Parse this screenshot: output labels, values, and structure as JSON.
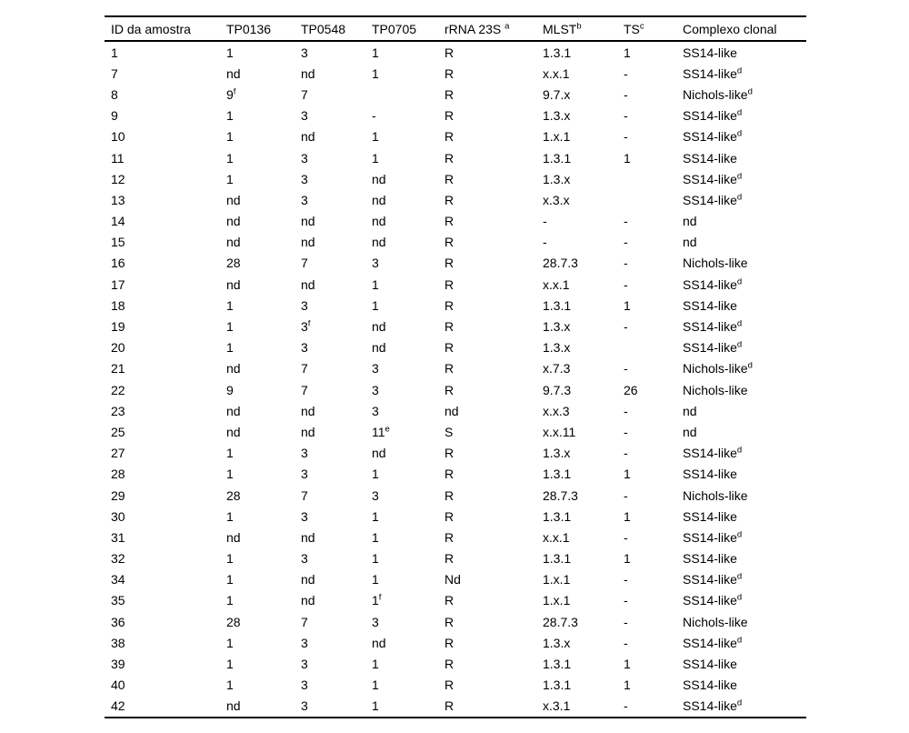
{
  "colors": {
    "background": "#ffffff",
    "text": "#000000",
    "rule": "#000000"
  },
  "table": {
    "superscript_marker": "^",
    "columns": [
      "ID da amostra",
      "TP0136",
      "TP0548",
      "TP0705",
      "rRNA 23S ^a",
      "MLST^b",
      "TS^c",
      "Complexo clonal"
    ],
    "rows": [
      [
        "1",
        "1",
        "3",
        "1",
        "R",
        "1.3.1",
        "1",
        "SS14-like"
      ],
      [
        "7",
        "nd",
        "nd",
        "1",
        "R",
        "x.x.1",
        "-",
        "SS14-like^d"
      ],
      [
        "8",
        "9^f",
        "7",
        "",
        "R",
        "9.7.x",
        "-",
        "Nichols-like^d"
      ],
      [
        "9",
        "1",
        "3",
        "-",
        "R",
        "1.3.x",
        "-",
        "SS14-like^d"
      ],
      [
        "10",
        "1",
        "nd",
        "1",
        "R",
        "1.x.1",
        "-",
        "SS14-like^d"
      ],
      [
        "11",
        "1",
        "3",
        "1",
        "R",
        "1.3.1",
        "1",
        "SS14-like"
      ],
      [
        "12",
        "1",
        "3",
        "nd",
        "R",
        "1.3.x",
        "",
        "SS14-like^d"
      ],
      [
        "13",
        "nd",
        "3",
        "nd",
        "R",
        "x.3.x",
        "",
        "SS14-like^d"
      ],
      [
        "14",
        "nd",
        "nd",
        "nd",
        "R",
        "-",
        "-",
        "nd"
      ],
      [
        "15",
        "nd",
        "nd",
        "nd",
        "R",
        "-",
        "-",
        "nd"
      ],
      [
        "16",
        "28",
        "7",
        "3",
        "R",
        "28.7.3",
        "-",
        "Nichols-like"
      ],
      [
        "17",
        "nd",
        "nd",
        "1",
        "R",
        "x.x.1",
        "-",
        "SS14-like^d"
      ],
      [
        "18",
        "1",
        "3",
        "1",
        "R",
        "1.3.1",
        "1",
        "SS14-like"
      ],
      [
        "19",
        "1",
        "3^f",
        "nd",
        "R",
        "1.3.x",
        "-",
        "SS14-like^d"
      ],
      [
        "20",
        "1",
        "3",
        "nd",
        "R",
        "1.3.x",
        "",
        "SS14-like^d"
      ],
      [
        "21",
        "nd",
        "7",
        "3",
        "R",
        "x.7.3",
        "-",
        "Nichols-like^d"
      ],
      [
        "22",
        "9",
        "7",
        "3",
        "R",
        "9.7.3",
        "26",
        "Nichols-like"
      ],
      [
        "23",
        "nd",
        "nd",
        "3",
        "nd",
        "x.x.3",
        "-",
        "nd"
      ],
      [
        "25",
        "nd",
        "nd",
        "11^e",
        "S",
        "x.x.11",
        "-",
        "nd"
      ],
      [
        "27",
        "1",
        "3",
        "nd",
        "R",
        "1.3.x",
        "-",
        "SS14-like^d"
      ],
      [
        "28",
        "1",
        "3",
        "1",
        "R",
        "1.3.1",
        "1",
        "SS14-like"
      ],
      [
        "29",
        "28",
        "7",
        "3",
        "R",
        "28.7.3",
        "-",
        "Nichols-like"
      ],
      [
        "30",
        "1",
        "3",
        "1",
        "R",
        "1.3.1",
        "1",
        "SS14-like"
      ],
      [
        "31",
        "nd",
        "nd",
        "1",
        "R",
        "x.x.1",
        "-",
        "SS14-like^d"
      ],
      [
        "32",
        "1",
        "3",
        "1",
        "R",
        "1.3.1",
        "1",
        "SS14-like"
      ],
      [
        "34",
        "1",
        "nd",
        "1",
        "Nd",
        "1.x.1",
        "-",
        "SS14-like^d"
      ],
      [
        "35",
        "1",
        "nd",
        "1^f",
        "R",
        "1.x.1",
        "-",
        "SS14-like^d"
      ],
      [
        "36",
        "28",
        "7",
        "3",
        "R",
        "28.7.3",
        "-",
        "Nichols-like"
      ],
      [
        "38",
        "1",
        "3",
        "nd",
        "R",
        "1.3.x",
        "-",
        "SS14-like^d"
      ],
      [
        "39",
        "1",
        "3",
        "1",
        "R",
        "1.3.1",
        "1",
        "SS14-like"
      ],
      [
        "40",
        "1",
        "3",
        "1",
        "R",
        "1.3.1",
        "1",
        "SS14-like"
      ],
      [
        "42",
        "nd",
        "3",
        "1",
        "R",
        "x.3.1",
        "-",
        "SS14-like^d"
      ]
    ]
  }
}
